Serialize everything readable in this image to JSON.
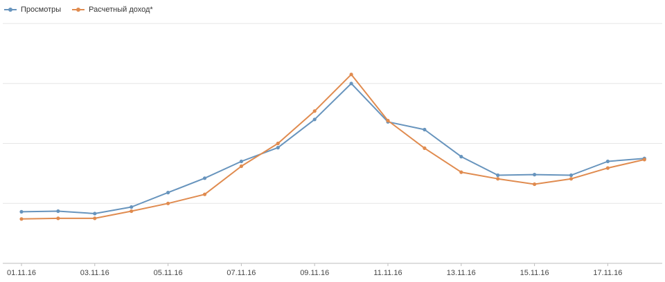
{
  "colors": {
    "views": "#6794bd",
    "revenue": "#e08b4f",
    "grid": "#e6e6e6",
    "axis": "#bdbdbd"
  },
  "chart_data": {
    "type": "line",
    "x": [
      "01.11.16",
      "02.11.16",
      "03.11.16",
      "04.11.16",
      "05.11.16",
      "06.11.16",
      "07.11.16",
      "08.11.16",
      "09.11.16",
      "10.11.16",
      "11.11.16",
      "12.11.16",
      "13.11.16",
      "14.11.16",
      "15.11.16",
      "16.11.16",
      "17.11.16",
      "18.11.16"
    ],
    "x_tick_labels": [
      "01.11.16",
      "03.11.16",
      "05.11.16",
      "07.11.16",
      "09.11.16",
      "11.11.16",
      "13.11.16",
      "15.11.16",
      "17.11.16"
    ],
    "series": [
      {
        "name": "Просмотры",
        "values": [
          0.86,
          0.87,
          0.83,
          0.94,
          1.18,
          1.42,
          1.7,
          1.93,
          2.4,
          3.0,
          2.36,
          2.23,
          1.78,
          1.47,
          1.48,
          1.47,
          1.7,
          1.75
        ]
      },
      {
        "name": "Расчетный доход*",
        "values": [
          0.74,
          0.75,
          0.75,
          0.87,
          1.0,
          1.15,
          1.62,
          2.0,
          2.54,
          3.15,
          2.38,
          1.92,
          1.52,
          1.41,
          1.32,
          1.41,
          1.59,
          1.73
        ]
      }
    ],
    "ylim": [
      0,
      4
    ],
    "grid": true,
    "legend_position": "top-left",
    "title": "",
    "xlabel": "",
    "ylabel": ""
  }
}
